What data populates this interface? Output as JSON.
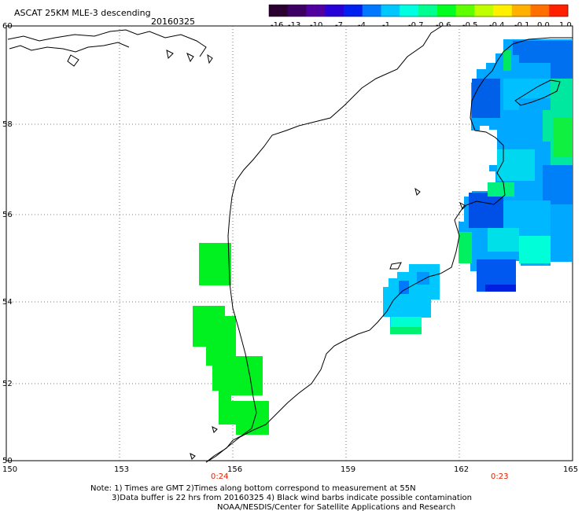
{
  "header": {
    "title": "ASCAT 25KM MLE-3 descending",
    "date": "20160325"
  },
  "colorbar": {
    "labels": [
      "-16",
      "-13",
      "-10",
      "-7",
      "-4",
      "-1",
      "-0.7",
      "-0.6",
      "-0.5",
      "-0.4",
      "-0.1",
      "0.0",
      "1.0"
    ],
    "colors": [
      "#2a0030",
      "#3c0064",
      "#5000a0",
      "#2800d8",
      "#0020f0",
      "#0078ff",
      "#00c8ff",
      "#00ffe0",
      "#00ff90",
      "#00ff20",
      "#60ff00",
      "#c0ff00",
      "#fff000",
      "#ffb000",
      "#ff7000",
      "#ff2000"
    ]
  },
  "axes": {
    "lon_labels": [
      "150",
      "153",
      "156",
      "159",
      "162",
      "165"
    ],
    "lat_labels": [
      "60",
      "58",
      "56",
      "54",
      "52",
      "50"
    ]
  },
  "time_marks": [
    "0:24",
    "0:23"
  ],
  "notes": {
    "line1": "Note: 1) Times are GMT 2)Times along bottom correspond to measurement at 55N",
    "line2": "3)Data buffer is 22 hrs from 20160325 4) Black wind barbs indicate possible contamination",
    "line3": "NOAA/NESDIS/Center for Satellite Applications and Research"
  }
}
